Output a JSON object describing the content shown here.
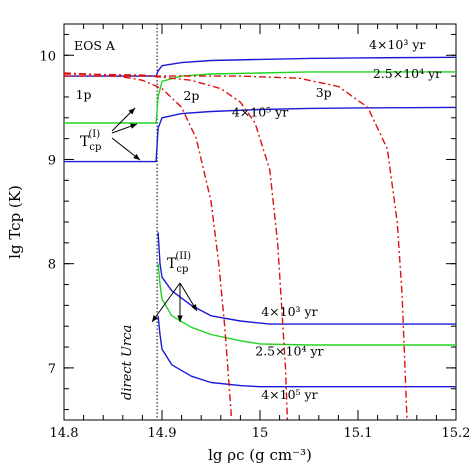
{
  "chart_data": {
    "type": "line",
    "xlabel": "lg ρc (g cm⁻³)",
    "ylabel": "lg Tcp (K)",
    "xlim": [
      14.8,
      15.2
    ],
    "ylim": [
      6.5,
      10.3
    ],
    "x_ticks": [
      14.8,
      14.9,
      15.0,
      15.1,
      15.2
    ],
    "x_tick_labels": [
      "14.8",
      "14.9",
      "15",
      "15.1",
      "15.2"
    ],
    "y_ticks": [
      7,
      8,
      9,
      10
    ],
    "y_tick_labels": [
      "7",
      "8",
      "9",
      "10"
    ],
    "colors": {
      "blue": "#1a1ad6",
      "green": "#22d322",
      "red": "#dd1111"
    },
    "vertical_line": {
      "x": 14.895,
      "label": "direct Urca"
    },
    "model_label": "EOS A",
    "series": [
      {
        "name": "4×10³ yr",
        "color": "blue",
        "style": "solid",
        "x": [
          14.8,
          14.894,
          14.896,
          14.9,
          14.92,
          14.95,
          15.0,
          15.05,
          15.1,
          15.2
        ],
        "y": [
          9.8,
          9.8,
          9.85,
          9.9,
          9.93,
          9.95,
          9.96,
          9.97,
          9.975,
          9.98
        ]
      },
      {
        "name": "2.5×10⁴ yr",
        "color": "green",
        "style": "solid",
        "x": [
          14.8,
          14.894,
          14.896,
          14.9,
          14.92,
          14.95,
          15.0,
          15.05,
          15.1,
          15.2
        ],
        "y": [
          9.35,
          9.35,
          9.6,
          9.75,
          9.8,
          9.82,
          9.83,
          9.84,
          9.84,
          9.84
        ]
      },
      {
        "name": "4×10⁵ yr",
        "color": "blue",
        "style": "solid",
        "x": [
          14.8,
          14.894,
          14.896,
          14.9,
          14.92,
          14.95,
          15.0,
          15.05,
          15.1,
          15.2
        ],
        "y": [
          8.98,
          8.98,
          9.3,
          9.4,
          9.44,
          9.46,
          9.48,
          9.49,
          9.495,
          9.5
        ]
      },
      {
        "name": "4×10³ yr",
        "color": "blue",
        "style": "solid",
        "x": [
          14.896,
          14.898,
          14.9,
          14.91,
          14.93,
          14.95,
          14.98,
          15.01,
          15.05,
          15.1,
          15.2
        ],
        "y": [
          8.3,
          8.0,
          7.87,
          7.74,
          7.6,
          7.5,
          7.45,
          7.42,
          7.42,
          7.42,
          7.42
        ]
      },
      {
        "name": "2.5×10⁴ yr",
        "color": "green",
        "style": "solid",
        "x": [
          14.896,
          14.898,
          14.9,
          14.91,
          14.93,
          14.95,
          14.98,
          15.0,
          15.05,
          15.1,
          15.2
        ],
        "y": [
          8.0,
          7.8,
          7.66,
          7.5,
          7.39,
          7.32,
          7.26,
          7.23,
          7.22,
          7.22,
          7.22
        ]
      },
      {
        "name": "4×10⁵ yr",
        "color": "blue",
        "style": "solid",
        "x": [
          14.896,
          14.898,
          14.9,
          14.91,
          14.93,
          14.95,
          14.98,
          15.0,
          15.05,
          15.1,
          15.2
        ],
        "y": [
          7.5,
          7.32,
          7.18,
          7.03,
          6.92,
          6.86,
          6.83,
          6.82,
          6.82,
          6.82,
          6.82
        ]
      },
      {
        "name": "1p",
        "color": "red",
        "style": "dashdot",
        "x": [
          14.8,
          14.85,
          14.88,
          14.9,
          14.92,
          14.935,
          14.95,
          14.958,
          14.964,
          14.968,
          14.971
        ],
        "y": [
          9.83,
          9.81,
          9.76,
          9.68,
          9.5,
          9.2,
          8.6,
          8.0,
          7.4,
          6.9,
          6.5
        ]
      },
      {
        "name": "2p",
        "color": "red",
        "style": "dashdot",
        "x": [
          14.8,
          14.88,
          14.93,
          14.96,
          14.98,
          14.995,
          15.01,
          15.018,
          15.022,
          15.026,
          15.028
        ],
        "y": [
          9.82,
          9.81,
          9.76,
          9.68,
          9.55,
          9.35,
          8.9,
          8.2,
          7.6,
          7.0,
          6.5
        ]
      },
      {
        "name": "3p",
        "color": "red",
        "style": "dashdot",
        "x": [
          14.8,
          14.9,
          14.98,
          15.04,
          15.08,
          15.11,
          15.13,
          15.14,
          15.145,
          15.148,
          15.15
        ],
        "y": [
          9.8,
          9.8,
          9.8,
          9.78,
          9.7,
          9.5,
          9.1,
          8.4,
          7.7,
          7.0,
          6.5
        ]
      }
    ],
    "annotations": [
      {
        "text": "4×10³ yr",
        "x": 15.14,
        "y": 10.06
      },
      {
        "text": "2.5×10⁴ yr",
        "x": 15.15,
        "y": 9.78
      },
      {
        "text": "4×10⁵ yr",
        "x": 15.0,
        "y": 9.41
      },
      {
        "text": "1p",
        "x": 14.82,
        "y": 9.58
      },
      {
        "text": "2p",
        "x": 14.93,
        "y": 9.57
      },
      {
        "text": "3p",
        "x": 15.065,
        "y": 9.6
      },
      {
        "text": "4×10³ yr",
        "x": 15.03,
        "y": 7.5
      },
      {
        "text": "2.5×10⁴ yr",
        "x": 15.03,
        "y": 7.12
      },
      {
        "text": "4×10⁵ yr",
        "x": 15.03,
        "y": 6.7
      }
    ],
    "tcp_labels": [
      {
        "base": "T",
        "sub": "cp",
        "sup": "(I)",
        "x": 14.83,
        "y": 9.1
      },
      {
        "base": "T",
        "sub": "cp",
        "sup": "(II)",
        "x": 14.925,
        "y": 7.85
      }
    ]
  }
}
